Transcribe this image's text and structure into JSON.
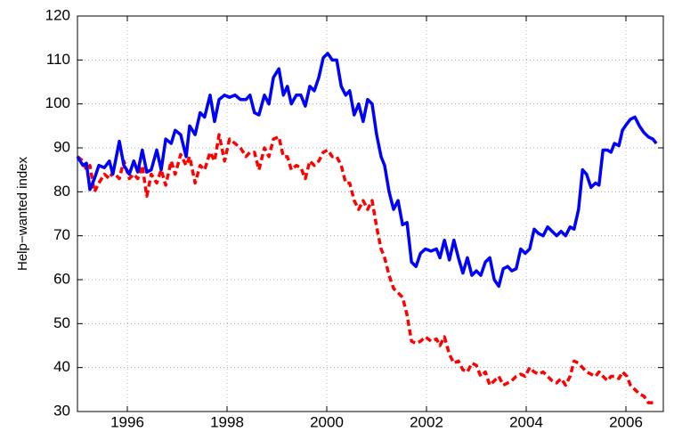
{
  "chart_data": {
    "type": "line",
    "y_label": "Help−wanted index",
    "xlim": [
      1995,
      2006.75
    ],
    "xticks": [
      1996,
      1998,
      2000,
      2002,
      2004,
      2006
    ],
    "ylim": [
      30,
      120
    ],
    "yticks": [
      30,
      40,
      50,
      60,
      70,
      80,
      90,
      100,
      110,
      120
    ],
    "grid": true,
    "x": [
      1995.0,
      1995.11,
      1995.18,
      1995.25,
      1995.34,
      1995.43,
      1995.54,
      1995.64,
      1995.71,
      1995.84,
      1995.93,
      1996.04,
      1996.13,
      1996.21,
      1996.3,
      1996.39,
      1996.48,
      1996.59,
      1996.68,
      1996.77,
      1996.88,
      1996.96,
      1997.07,
      1997.18,
      1997.25,
      1997.36,
      1997.46,
      1997.55,
      1997.66,
      1997.75,
      1997.84,
      1997.95,
      1998.05,
      1998.16,
      1998.27,
      1998.38,
      1998.46,
      1998.55,
      1998.64,
      1998.75,
      1998.84,
      1998.93,
      1999.04,
      1999.13,
      1999.21,
      1999.29,
      1999.39,
      1999.48,
      1999.57,
      1999.66,
      1999.75,
      1999.84,
      1999.93,
      2000.02,
      2000.11,
      2000.2,
      2000.29,
      2000.38,
      2000.46,
      2000.55,
      2000.64,
      2000.73,
      2000.82,
      2000.91,
      2001.0,
      2001.09,
      2001.16,
      2001.25,
      2001.34,
      2001.43,
      2001.52,
      2001.61,
      2001.7,
      2001.79,
      2001.88,
      2001.98,
      2002.09,
      2002.2,
      2002.27,
      2002.36,
      2002.46,
      2002.55,
      2002.64,
      2002.73,
      2002.82,
      2002.91,
      2003.0,
      2003.09,
      2003.18,
      2003.27,
      2003.36,
      2003.45,
      2003.54,
      2003.63,
      2003.71,
      2003.8,
      2003.89,
      2003.98,
      2004.07,
      2004.16,
      2004.25,
      2004.34,
      2004.43,
      2004.52,
      2004.61,
      2004.7,
      2004.79,
      2004.88,
      2004.96,
      2005.05,
      2005.13,
      2005.21,
      2005.3,
      2005.39,
      2005.46,
      2005.54,
      2005.63,
      2005.7,
      2005.77,
      2005.86,
      2005.93,
      2006.02,
      2006.09,
      2006.18,
      2006.27,
      2006.36,
      2006.45,
      2006.54,
      2006.61
    ],
    "series": [
      {
        "color": "#0000ff",
        "linestyle": "solid",
        "values": [
          88,
          86,
          86.5,
          80.5,
          83,
          86,
          85.5,
          87,
          84,
          91.5,
          86,
          84,
          87,
          84.5,
          89.5,
          84.5,
          85,
          89.5,
          85,
          92,
          91,
          94,
          93,
          88,
          95,
          93,
          98,
          97,
          102,
          96,
          101,
          102,
          101.5,
          102,
          101,
          101,
          102,
          98,
          97.5,
          102,
          100,
          106,
          108,
          102,
          104,
          100,
          102,
          102,
          99.5,
          104,
          103,
          106,
          110.5,
          111.5,
          110,
          110,
          104,
          102,
          103,
          97.5,
          100,
          96,
          101,
          100,
          93,
          88,
          86,
          80,
          76,
          78,
          72.5,
          73,
          64,
          63,
          66,
          67,
          66.5,
          67,
          65,
          69,
          64.5,
          69,
          65,
          61.5,
          65,
          61,
          62,
          61,
          64,
          65,
          60,
          58.5,
          62.5,
          63,
          62,
          62.5,
          67,
          66,
          67,
          71.5,
          70.5,
          70,
          72,
          71,
          70,
          71,
          70,
          72,
          71.5,
          76,
          85,
          84,
          81,
          82,
          81.5,
          89.5,
          89.5,
          89,
          91,
          90.5,
          94,
          95.5,
          96.5,
          97,
          95,
          93.5,
          92.5,
          92,
          91
        ]
      },
      {
        "color": "#ff0000",
        "linestyle": "dashed",
        "values": [
          88,
          87,
          85,
          86,
          80,
          82,
          84,
          83,
          84.5,
          83,
          87,
          83,
          84,
          83,
          86,
          79,
          84,
          82,
          85,
          81.5,
          87,
          84,
          88.5,
          86,
          88,
          82,
          86,
          85,
          89,
          87,
          93,
          87,
          92,
          91,
          90,
          88,
          89,
          89,
          85,
          90,
          88,
          92,
          92.5,
          88,
          88,
          85,
          86,
          85.5,
          83,
          87,
          86,
          87,
          89,
          89.5,
          88,
          88,
          86,
          82,
          82,
          78,
          76,
          78,
          76,
          78,
          72,
          67,
          65,
          61,
          58,
          57,
          56,
          52,
          46,
          45.5,
          46,
          47,
          46,
          46.5,
          45,
          47,
          43,
          41,
          41.5,
          39.5,
          39,
          41,
          40.5,
          38,
          39,
          36,
          37,
          38,
          36,
          36.5,
          37,
          38,
          38.5,
          38,
          40,
          39,
          38.5,
          39,
          38,
          37,
          36.5,
          37.5,
          36,
          38,
          41.5,
          41,
          40,
          39,
          38.5,
          38,
          39,
          38,
          37,
          38,
          38,
          37.5,
          39,
          38,
          36,
          35,
          34,
          33.5,
          32,
          32,
          32
        ]
      }
    ]
  }
}
